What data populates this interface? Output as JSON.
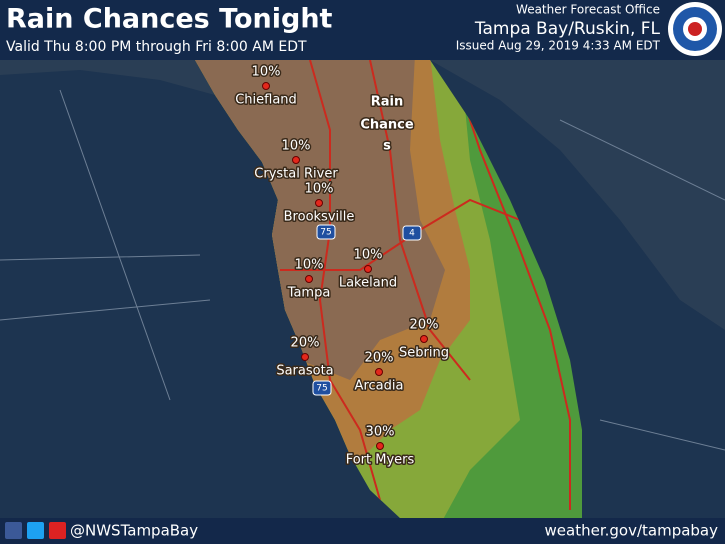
{
  "header": {
    "title": "Rain Chances Tonight",
    "subtitle": "Valid Thu 8:00 PM through Fri 8:00 AM EDT",
    "office": "Weather Forecast Office",
    "location": "Tampa Bay/Ruskin, FL",
    "issued": "Issued Aug 29, 2019 4:33 AM EDT"
  },
  "map_label": [
    "Rain",
    "Chance",
    "s"
  ],
  "cities": [
    {
      "name": "Chiefland",
      "chance": "10%"
    },
    {
      "name": "Crystal River",
      "chance": "10%"
    },
    {
      "name": "Brooksville",
      "chance": "10%"
    },
    {
      "name": "Tampa",
      "chance": "10%"
    },
    {
      "name": "Lakeland",
      "chance": "10%"
    },
    {
      "name": "Sebring",
      "chance": "20%"
    },
    {
      "name": "Sarasota",
      "chance": "20%"
    },
    {
      "name": "Arcadia",
      "chance": "20%"
    },
    {
      "name": "Fort Myers",
      "chance": "30%"
    }
  ],
  "highways": [
    "75",
    "4",
    "75"
  ],
  "footer": {
    "handle": "@NWSTampaBay",
    "url": "weather.gov/tampabay"
  }
}
